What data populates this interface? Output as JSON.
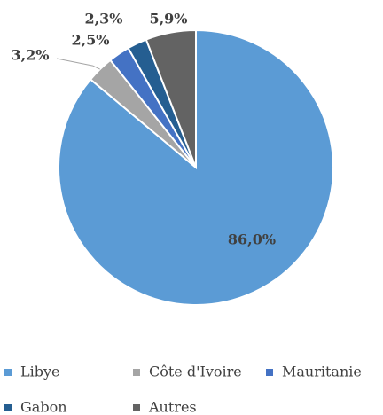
{
  "chart_data": {
    "type": "pie",
    "categories": [
      "Libye",
      "Côte d'Ivoire",
      "Mauritanie",
      "Gabon",
      "Autres"
    ],
    "values": [
      86.0,
      3.2,
      2.5,
      2.3,
      5.9
    ],
    "value_labels": [
      "86,0%",
      "3,2%",
      "2,5%",
      "2,3%",
      "5,9%"
    ],
    "colors": [
      "#5b9bd5",
      "#a5a5a5",
      "#4472c4",
      "#255e91",
      "#636363"
    ],
    "legend": "bottom"
  }
}
